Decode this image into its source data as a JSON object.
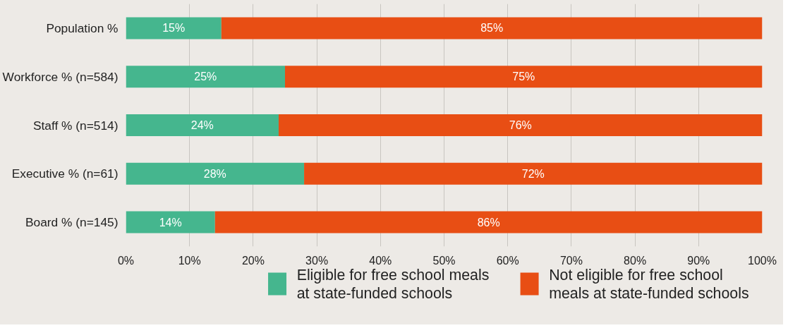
{
  "chart_data": {
    "type": "bar",
    "orientation": "horizontal",
    "stacked": true,
    "categories": [
      "Population %",
      "Workforce % (n=584)",
      "Staff % (n=514)",
      "Executive % (n=61)",
      "Board % (n=145)"
    ],
    "series": [
      {
        "name": "Eligible for free school meals at state-funded schools",
        "color": "#45b68e",
        "values": [
          15,
          25,
          24,
          28,
          14
        ],
        "value_labels": [
          "15%",
          "25%",
          "24%",
          "28%",
          "14%"
        ]
      },
      {
        "name": "Not eligible for free school meals at state-funded schools",
        "color": "#e84e14",
        "values": [
          85,
          75,
          76,
          72,
          86
        ],
        "value_labels": [
          "85%",
          "75%",
          "76%",
          "72%",
          "86%"
        ]
      }
    ],
    "xlim": [
      0,
      100
    ],
    "xticks": [
      {
        "value": 0,
        "label": "0%"
      },
      {
        "value": 10,
        "label": "10%"
      },
      {
        "value": 20,
        "label": "20%"
      },
      {
        "value": 30,
        "label": "30%"
      },
      {
        "value": 40,
        "label": "40%"
      },
      {
        "value": 50,
        "label": "50%"
      },
      {
        "value": 60,
        "label": "60%"
      },
      {
        "value": 70,
        "label": "70%"
      },
      {
        "value": 80,
        "label": "80%"
      },
      {
        "value": 90,
        "label": "90%"
      },
      {
        "value": 100,
        "label": "100%"
      }
    ],
    "grid": "x",
    "legend": "bottom"
  }
}
